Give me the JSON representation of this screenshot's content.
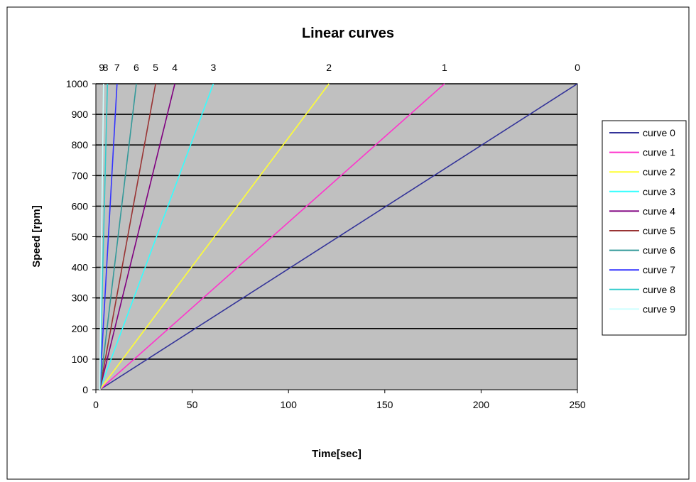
{
  "chart_data": {
    "type": "line",
    "title": "Linear curves",
    "xlabel": "Time[sec]",
    "ylabel": "Speed [rpm]",
    "xlim": [
      0,
      250
    ],
    "ylim": [
      0,
      1000
    ],
    "x_ticks": [
      0,
      50,
      100,
      150,
      200,
      250
    ],
    "y_ticks": [
      0,
      100,
      200,
      300,
      400,
      500,
      600,
      700,
      800,
      900,
      1000
    ],
    "grid": "horizontal",
    "plot_background": "#c0c0c0",
    "legend_position": "right",
    "curve_end_labels": [
      {
        "text": "9",
        "x": 3
      },
      {
        "text": "8",
        "x": 5
      },
      {
        "text": "7",
        "x": 11
      },
      {
        "text": "6",
        "x": 21
      },
      {
        "text": "5",
        "x": 31
      },
      {
        "text": "4",
        "x": 41
      },
      {
        "text": "3",
        "x": 61
      },
      {
        "text": "2",
        "x": 121
      },
      {
        "text": "1",
        "x": 181
      },
      {
        "text": "0",
        "x": 250
      }
    ],
    "series": [
      {
        "name": "curve 0",
        "color": "#333399",
        "x": [
          2,
          250
        ],
        "y": [
          0,
          1000
        ]
      },
      {
        "name": "curve 1",
        "color": "#ff33cc",
        "x": [
          2,
          181
        ],
        "y": [
          0,
          1000
        ]
      },
      {
        "name": "curve 2",
        "color": "#ffff33",
        "x": [
          2,
          121
        ],
        "y": [
          0,
          1000
        ]
      },
      {
        "name": "curve 3",
        "color": "#33ffff",
        "x": [
          2,
          61
        ],
        "y": [
          0,
          1000
        ]
      },
      {
        "name": "curve 4",
        "color": "#800080",
        "x": [
          2,
          41
        ],
        "y": [
          0,
          1000
        ]
      },
      {
        "name": "curve 5",
        "color": "#993333",
        "x": [
          2,
          31
        ],
        "y": [
          0,
          1000
        ]
      },
      {
        "name": "curve 6",
        "color": "#339999",
        "x": [
          2,
          21
        ],
        "y": [
          0,
          1000
        ]
      },
      {
        "name": "curve 7",
        "color": "#3333ff",
        "x": [
          2,
          11
        ],
        "y": [
          0,
          1000
        ]
      },
      {
        "name": "curve 8",
        "color": "#33cccc",
        "x": [
          2,
          6
        ],
        "y": [
          0,
          1000
        ]
      },
      {
        "name": "curve 9",
        "color": "#ccffff",
        "x": [
          2,
          4
        ],
        "y": [
          0,
          1000
        ]
      }
    ]
  }
}
